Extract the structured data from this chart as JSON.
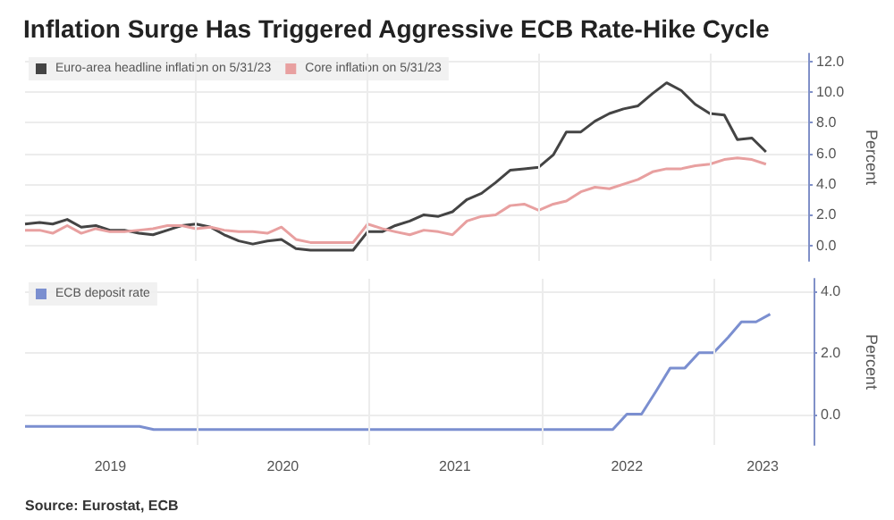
{
  "chart_data": [
    {
      "type": "line",
      "title": "Inflation Surge Has Triggered Aggressive ECB Rate-Hike Cycle",
      "ylabel": "Percent",
      "x": [
        "2019-01",
        "2019-02",
        "2019-03",
        "2019-04",
        "2019-05",
        "2019-06",
        "2019-07",
        "2019-08",
        "2019-09",
        "2019-10",
        "2019-11",
        "2019-12",
        "2020-01",
        "2020-02",
        "2020-03",
        "2020-04",
        "2020-05",
        "2020-06",
        "2020-07",
        "2020-08",
        "2020-09",
        "2020-10",
        "2020-11",
        "2020-12",
        "2021-01",
        "2021-02",
        "2021-03",
        "2021-04",
        "2021-05",
        "2021-06",
        "2021-07",
        "2021-08",
        "2021-09",
        "2021-10",
        "2021-11",
        "2021-12",
        "2022-01",
        "2022-02",
        "2022-03",
        "2022-04",
        "2022-05",
        "2022-06",
        "2022-07",
        "2022-08",
        "2022-09",
        "2022-10",
        "2022-11",
        "2022-12",
        "2023-01",
        "2023-02",
        "2023-03",
        "2023-04",
        "2023-05"
      ],
      "series": [
        {
          "name": "Euro-area headline inflation on 5/31/23",
          "color": "#444444",
          "values": [
            1.4,
            1.5,
            1.4,
            1.7,
            1.2,
            1.3,
            1.0,
            1.0,
            0.8,
            0.7,
            1.0,
            1.3,
            1.4,
            1.2,
            0.7,
            0.3,
            0.1,
            0.3,
            0.4,
            -0.2,
            -0.3,
            -0.3,
            -0.3,
            -0.3,
            0.9,
            0.9,
            1.3,
            1.6,
            2.0,
            1.9,
            2.2,
            3.0,
            3.4,
            4.1,
            4.9,
            5.0,
            5.1,
            5.9,
            7.4,
            7.4,
            8.1,
            8.6,
            8.9,
            9.1,
            9.9,
            10.6,
            10.1,
            9.2,
            8.6,
            8.5,
            6.9,
            7.0,
            6.1
          ]
        },
        {
          "name": "Core inflation on 5/31/23",
          "color": "#e8a0a0",
          "values": [
            1.0,
            1.0,
            0.8,
            1.3,
            0.8,
            1.1,
            0.9,
            0.9,
            1.0,
            1.1,
            1.3,
            1.3,
            1.1,
            1.2,
            1.0,
            0.9,
            0.9,
            0.8,
            1.2,
            0.4,
            0.2,
            0.2,
            0.2,
            0.2,
            1.4,
            1.1,
            0.9,
            0.7,
            1.0,
            0.9,
            0.7,
            1.6,
            1.9,
            2.0,
            2.6,
            2.7,
            2.3,
            2.7,
            2.9,
            3.5,
            3.8,
            3.7,
            4.0,
            4.3,
            4.8,
            5.0,
            5.0,
            5.2,
            5.3,
            5.6,
            5.7,
            5.6,
            5.3
          ]
        }
      ],
      "xlim": [
        "2019-01",
        "2023-08"
      ],
      "xticks": [
        {
          "value": "2020-01",
          "label": null
        },
        {
          "value": "2021-01",
          "label": null
        },
        {
          "value": "2022-01",
          "label": null
        },
        {
          "value": "2023-01",
          "label": null
        }
      ],
      "ylim": [
        -1,
        12.5
      ],
      "yticks": [
        {
          "value": 0,
          "label": "0.0"
        },
        {
          "value": 2,
          "label": "2.0"
        },
        {
          "value": 4,
          "label": "4.0"
        },
        {
          "value": 6,
          "label": "6.0"
        },
        {
          "value": 8,
          "label": "8.0"
        },
        {
          "value": 10,
          "label": "10.0"
        },
        {
          "value": 12,
          "label": "12.0"
        }
      ],
      "grid": true,
      "legend": "top left",
      "marker": "none",
      "tick_labels": "y"
    },
    {
      "type": "line",
      "ylabel": "Percent",
      "annotations": [
        "Source: Eurostat, ECB"
      ],
      "x": [
        "2019-01",
        "2019-09",
        "2019-10",
        "2022-06",
        "2022-07",
        "2022-08",
        "2022-09",
        "2022-10",
        "2022-11",
        "2022-12",
        "2023-01",
        "2023-02",
        "2023-03",
        "2023-04",
        "2023-05"
      ],
      "series": [
        {
          "name": "ECB deposit rate",
          "color": "#7b8fd0",
          "values": [
            -0.4,
            -0.4,
            -0.5,
            -0.5,
            0,
            0,
            0.75,
            1.5,
            1.5,
            2.0,
            2.0,
            2.5,
            3.0,
            3.0,
            3.25
          ]
        }
      ],
      "xlim": [
        "2019-01",
        "2023-08"
      ],
      "xticks": [
        {
          "value": "2019-07",
          "label": "2019"
        },
        {
          "value": "2020-01",
          "label": null
        },
        {
          "value": "2020-07",
          "label": "2020"
        },
        {
          "value": "2021-01",
          "label": null
        },
        {
          "value": "2021-07",
          "label": "2021"
        },
        {
          "value": "2022-01",
          "label": null
        },
        {
          "value": "2022-07",
          "label": "2022"
        },
        {
          "value": "2023-01",
          "label": null
        },
        {
          "value": "2023-04-15",
          "label": "2023"
        }
      ],
      "ylim": [
        -1,
        4.4
      ],
      "yticks": [
        {
          "value": 0,
          "label": "0.0"
        },
        {
          "value": 2,
          "label": "2.0"
        },
        {
          "value": 4,
          "label": "4.0"
        }
      ],
      "grid": true,
      "legend": "top left",
      "marker": "none"
    }
  ]
}
